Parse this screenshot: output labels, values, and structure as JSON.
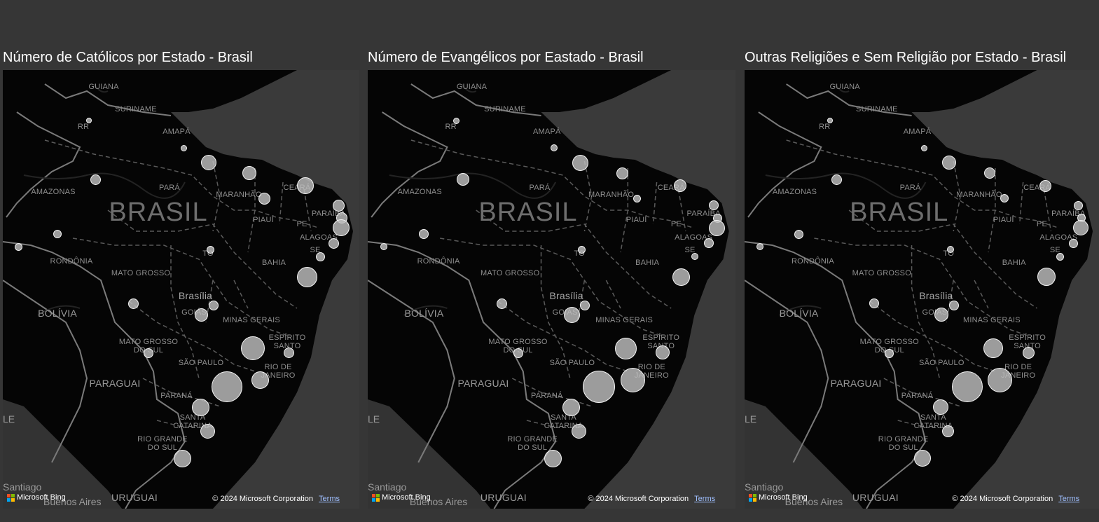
{
  "panels": [
    {
      "title": "Número de Católicos por Estado - Brasil"
    },
    {
      "title": "Número de Evangélicos por Eastado - Brasil"
    },
    {
      "title": "Outras Religiões e Sem Religião por Estado - Brasil"
    }
  ],
  "map_labels": {
    "big": "BRASIL",
    "countries": [
      "GUIANA",
      "SURINAME",
      "BOLÍVIA",
      "PARAGUAI",
      "URUGUAI"
    ],
    "states": [
      "RR",
      "AMAPÁ",
      "AMAZONAS",
      "PARÁ",
      "MARANHÃO",
      "CEARÁ",
      "PARAÍBA",
      "PIAUÍ",
      "PE",
      "ALAGOAS",
      "SE",
      "TO",
      "BAHIA",
      "RONDÔNIA",
      "MATO GROSSO",
      "GOIÁS",
      "MINAS GERAIS",
      "ESPÍRITO SANTO",
      "MATO GROSSO DO SUL",
      "SÃO PAULO",
      "RIO DE JANEIRO",
      "PARANÁ",
      "SANTA CATARINA",
      "RIO GRANDE DO SUL"
    ],
    "cities": [
      "Brasília",
      "Santiago",
      "Buenos Aires"
    ],
    "edge_fragment": "LE"
  },
  "attribution": {
    "brand": "Microsoft Bing",
    "copyright": "© 2024 Microsoft Corporation",
    "terms": "Terms"
  },
  "logo_colors": [
    "#f25022",
    "#7fba00",
    "#00a4ef",
    "#ffb900"
  ],
  "bubble_style": {
    "fill": "#bebebe",
    "stroke": "#f2f2f2"
  },
  "bubbles": {
    "catolicos": {
      "RR": 8,
      "AP": 9,
      "AM": 15,
      "PA": 22,
      "MA": 20,
      "CE": 24,
      "PI": 17,
      "RN": 17,
      "PB": 16,
      "PE": 24,
      "AL": 15,
      "SE": 13,
      "TO": 11,
      "BA": 29,
      "AC": 11,
      "RO": 12,
      "MT": 15,
      "DF": 14,
      "GO": 19,
      "MG": 34,
      "ES": 15,
      "MS": 14,
      "SP": 44,
      "RJ": 25,
      "PR": 25,
      "SC": 21,
      "RS": 25
    },
    "evangelicos": {
      "RR": 9,
      "AP": 10,
      "AM": 18,
      "PA": 23,
      "MA": 17,
      "CE": 18,
      "PI": 11,
      "RN": 14,
      "PB": 13,
      "PE": 23,
      "AL": 14,
      "SE": 10,
      "TO": 11,
      "BA": 25,
      "AC": 10,
      "RO": 14,
      "MT": 15,
      "DF": 14,
      "GO": 23,
      "MG": 31,
      "ES": 20,
      "MS": 14,
      "SP": 46,
      "RJ": 35,
      "PR": 25,
      "SC": 21,
      "RS": 25
    },
    "outras": {
      "RR": 8,
      "AP": 9,
      "AM": 15,
      "PA": 20,
      "MA": 16,
      "CE": 17,
      "PI": 12,
      "RN": 13,
      "PB": 12,
      "PE": 22,
      "AL": 13,
      "SE": 11,
      "TO": 10,
      "BA": 26,
      "AC": 10,
      "RO": 13,
      "MT": 14,
      "DF": 14,
      "GO": 20,
      "MG": 28,
      "ES": 17,
      "MS": 13,
      "SP": 44,
      "RJ": 35,
      "PR": 22,
      "SC": 17,
      "RS": 24
    }
  }
}
